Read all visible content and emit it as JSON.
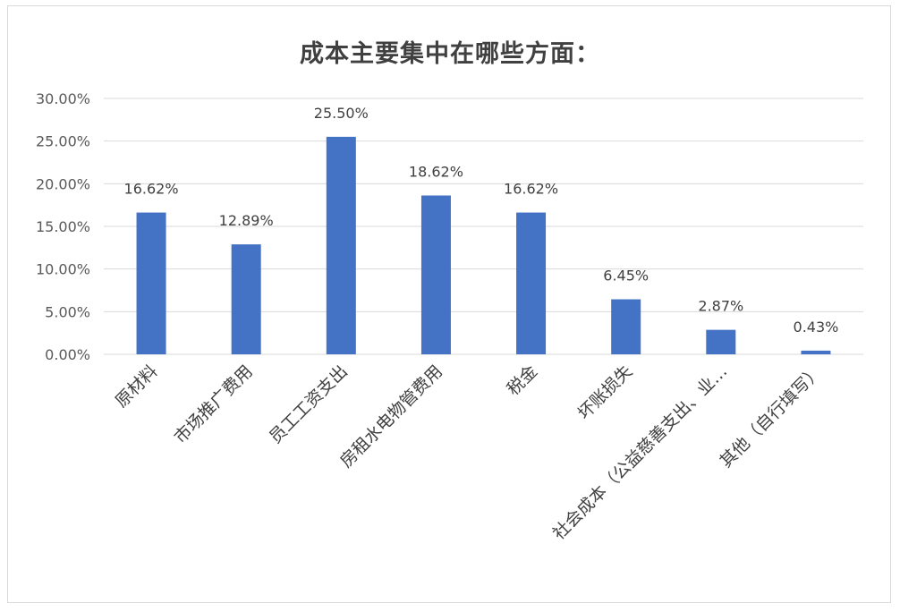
{
  "chart_data": {
    "type": "bar",
    "title": "成本主要集中在哪些方面：",
    "categories": [
      "原材料",
      "市场推广费用",
      "员工工资支出",
      "房租水电物管费用",
      "税金",
      "坏账损失",
      "社会成本（公益慈善支出、业…",
      "其他（自行填写）"
    ],
    "values": [
      16.62,
      12.89,
      25.5,
      18.62,
      16.62,
      6.45,
      2.87,
      0.43
    ],
    "value_labels": [
      "16.62%",
      "12.89%",
      "25.50%",
      "18.62%",
      "16.62%",
      "6.45%",
      "2.87%",
      "0.43%"
    ],
    "y_ticks": [
      "0.00%",
      "5.00%",
      "10.00%",
      "15.00%",
      "20.00%",
      "25.00%",
      "30.00%"
    ],
    "ylim": [
      0,
      30
    ],
    "grid": true,
    "legend": "none",
    "xlabel": "",
    "ylabel": "",
    "colors": {
      "bar": "#4472c4",
      "grid": "#d9d9d9"
    }
  }
}
